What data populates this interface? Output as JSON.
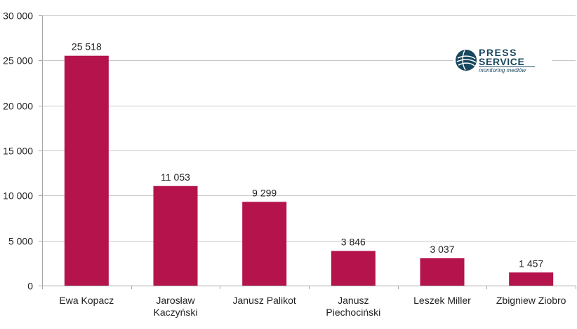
{
  "chart_data": {
    "type": "bar",
    "title": "",
    "xlabel": "",
    "ylabel": "",
    "categories": [
      [
        "Ewa Kopacz"
      ],
      [
        "Jarosław",
        "Kaczyński"
      ],
      [
        "Janusz Palikot"
      ],
      [
        "Janusz",
        "Piechociński"
      ],
      [
        "Leszek Miller"
      ],
      [
        "Zbigniew Ziobro"
      ]
    ],
    "values": [
      25518,
      11053,
      9299,
      3846,
      3037,
      1457
    ],
    "value_labels": [
      "25 518",
      "11 053",
      "9 299",
      "3 846",
      "3 037",
      "1 457"
    ],
    "ylim": [
      0,
      30000
    ],
    "yticks": [
      0,
      5000,
      10000,
      15000,
      20000,
      25000,
      30000
    ],
    "ytick_labels": [
      "0",
      "5 000",
      "10 000",
      "15 000",
      "20 000",
      "25 000",
      "30 000"
    ],
    "grid": true,
    "legend": "none",
    "bar_color": "#b5134b",
    "grid_color": "#c8c8c8",
    "axis_color": "#a6a6a6"
  },
  "logo": {
    "line1": "PRESS",
    "line2": "SERVICE",
    "line3": "monitoring mediów"
  }
}
